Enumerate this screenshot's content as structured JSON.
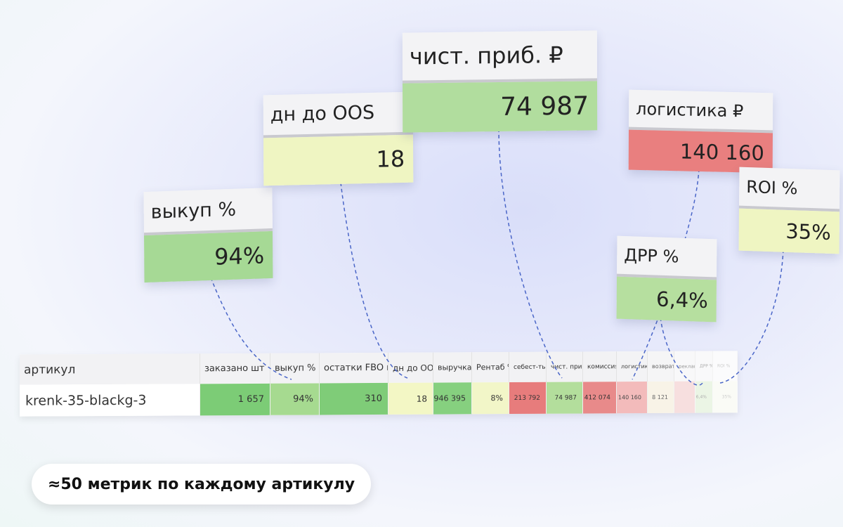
{
  "callouts": [
    {
      "label": "выкуп %",
      "value": "94%"
    },
    {
      "label": "дн до OOS",
      "value": "18"
    },
    {
      "label": "чист. приб. ₽",
      "value": "74 987"
    },
    {
      "label": "логистика ₽",
      "value": "140 160"
    },
    {
      "label": "ROI %",
      "value": "35%"
    },
    {
      "label": "ДРР %",
      "value": "6,4%"
    }
  ],
  "table": {
    "headers": [
      "артикул",
      "заказано шт",
      "выкуп %",
      "остатки FBO шт",
      "дн до OOS",
      "выручка ₽",
      "Рентаб %",
      "себест-ть ₽",
      "чист. приб. ₽",
      "комиссия ₽",
      "логистика ₽",
      "возвраты ₽",
      "реклама ₽",
      "ДРР %",
      "ROI %"
    ],
    "rows": [
      [
        "krenk-35-blackg-3",
        "1 657",
        "94%",
        "310",
        "18",
        "946 395",
        "8%",
        "213 792",
        "74 987",
        "412 074",
        "140 160",
        "8 121",
        null,
        "6,4%",
        "35%"
      ]
    ]
  },
  "caption": "≈50 метрик по каждому артикулу"
}
